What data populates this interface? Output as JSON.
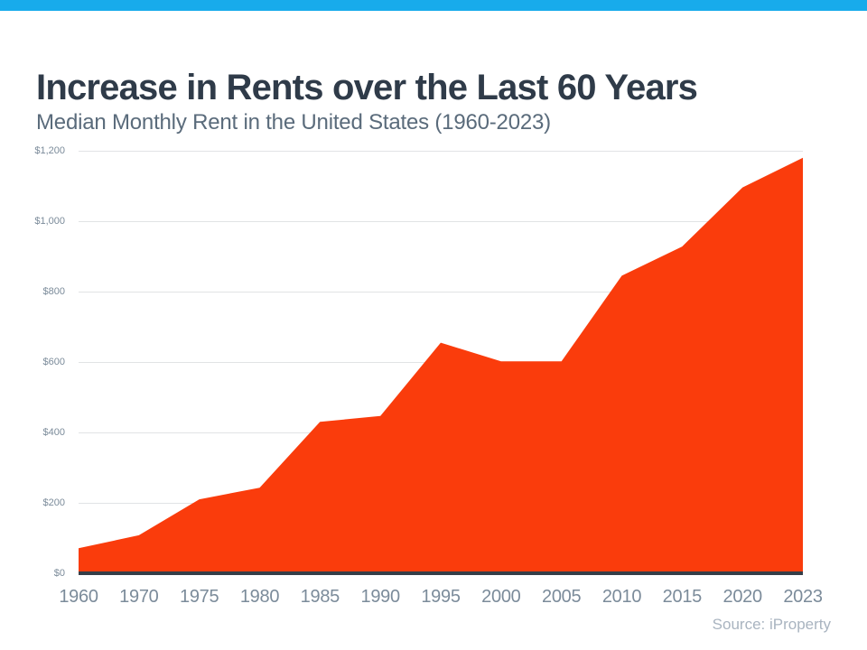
{
  "colors": {
    "accent_bar": "#18abeb",
    "area_fill": "#fa3c0c",
    "axis_line": "#353e48",
    "gridline": "#e1e3e5",
    "title_text": "#2f3b49",
    "subtitle_text": "#5a6b7b",
    "tick_text": "#7b8b9a",
    "source_text": "#a9b4c0"
  },
  "header": {
    "title": "Increase in Rents over the Last 60 Years",
    "subtitle": "Median Monthly Rent in the United States (1960-2023)"
  },
  "chart_data": {
    "type": "area",
    "title": "Increase in Rents over the Last 60 Years",
    "subtitle": "Median Monthly Rent in the United States (1960-2023)",
    "categories": [
      "1960",
      "1970",
      "1975",
      "1980",
      "1985",
      "1990",
      "1995",
      "2000",
      "2005",
      "2010",
      "2015",
      "2020",
      "2023"
    ],
    "series": [
      {
        "name": "Median Monthly Rent (USD)",
        "values": [
          71,
          108,
          210,
          243,
          430,
          447,
          655,
          602,
          602,
          845,
          928,
          1096,
          1180
        ]
      }
    ],
    "xlabel": "",
    "ylabel": "",
    "ylim": [
      0,
      1200
    ],
    "y_ticks": [
      {
        "value": 1200,
        "label": "$1,200"
      },
      {
        "value": 1000,
        "label": "$1,000"
      },
      {
        "value": 800,
        "label": "$800"
      },
      {
        "value": 600,
        "label": "$600"
      },
      {
        "value": 400,
        "label": "$400"
      },
      {
        "value": 200,
        "label": "$200"
      },
      {
        "value": 0,
        "label": "$0"
      }
    ],
    "grid": true,
    "legend_position": "none",
    "area_color": "#fa3c0c"
  },
  "footer": {
    "source": "Source: iProperty"
  }
}
